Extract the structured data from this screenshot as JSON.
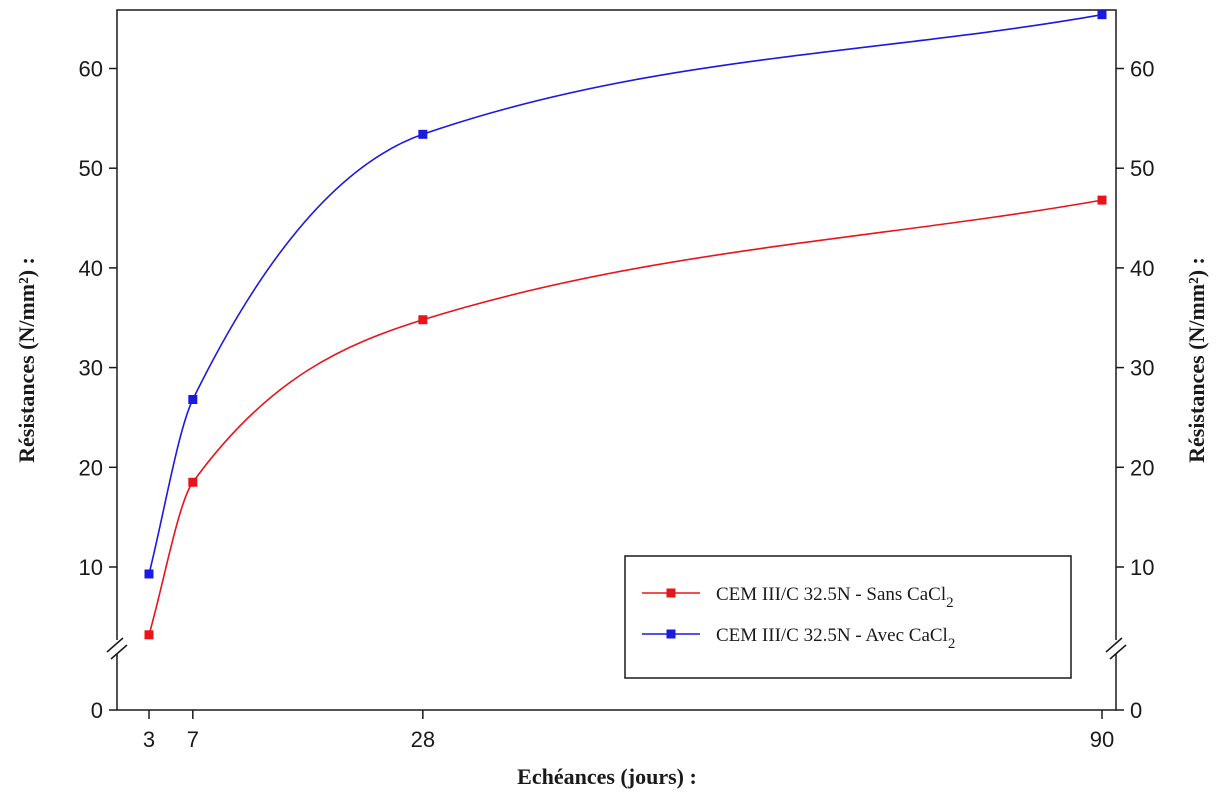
{
  "chart_data": {
    "type": "line",
    "title": "",
    "xlabel": "Echéances (jours) :",
    "ylabel": "Résistances (N/mm²) :",
    "ylabel_right": "Résistances (N/mm²) :",
    "x": [
      3,
      7,
      28,
      90
    ],
    "xticks": [
      3,
      7,
      28,
      90
    ],
    "yticks": [
      0,
      10,
      20,
      30,
      40,
      50,
      60
    ],
    "ylim": [
      0,
      65
    ],
    "y_axis_break": true,
    "grid": false,
    "legend_position": "bottom-right",
    "series": [
      {
        "name": "CEM III/C 32.5N - Sans CaCl",
        "name_subscript": "2",
        "color": "#e8141b",
        "values": [
          3.2,
          18.5,
          34.8,
          46.8
        ]
      },
      {
        "name": "CEM III/C 32.5N - Avec CaCl",
        "name_subscript": "2",
        "color": "#1a1ae0",
        "values": [
          9.3,
          26.8,
          53.4,
          65.4
        ]
      }
    ]
  }
}
